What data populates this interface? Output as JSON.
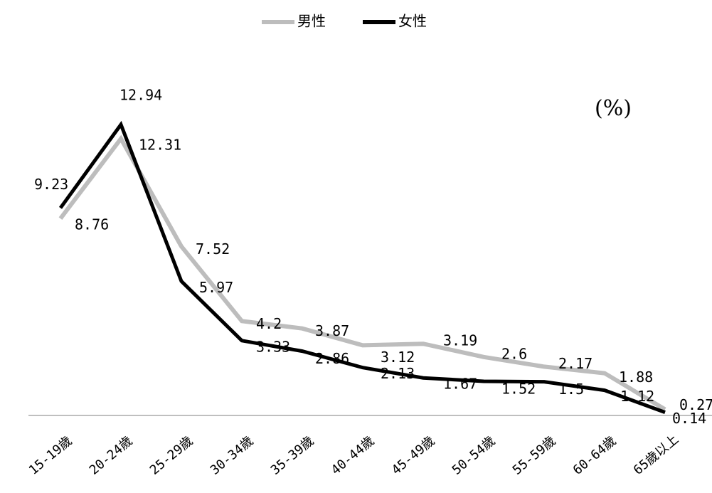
{
  "chart_data": {
    "type": "line",
    "unit_label": "(%)",
    "categories": [
      "15-19歲",
      "20-24歲",
      "25-29歲",
      "30-34歲",
      "35-39歲",
      "40-44歲",
      "45-49歲",
      "50-54歲",
      "55-59歲",
      "60-64歲",
      "65歲以上"
    ],
    "series": [
      {
        "name": "男性",
        "color": "#bdbdbd",
        "values": [
          8.76,
          12.31,
          7.52,
          4.2,
          3.87,
          3.12,
          3.19,
          2.6,
          2.17,
          1.88,
          0.27
        ],
        "labels": [
          "8.76",
          "12.31",
          "7.52",
          "4.2",
          "3.87",
          "3.12",
          "3.19",
          "2.6",
          "2.17",
          "1.88",
          "0.27"
        ]
      },
      {
        "name": "女性",
        "color": "#000000",
        "values": [
          9.23,
          12.94,
          5.97,
          3.33,
          2.86,
          2.13,
          1.67,
          1.52,
          1.5,
          1.12,
          0.14
        ],
        "labels": [
          "9.23",
          "12.94",
          "5.97",
          "3.33",
          "2.86",
          "2.13",
          "1.67",
          "1.52",
          "1.5",
          "1.12",
          "0.14"
        ]
      }
    ],
    "ylim": [
      0,
      14
    ],
    "grid": false,
    "legend_position": "top-center"
  }
}
